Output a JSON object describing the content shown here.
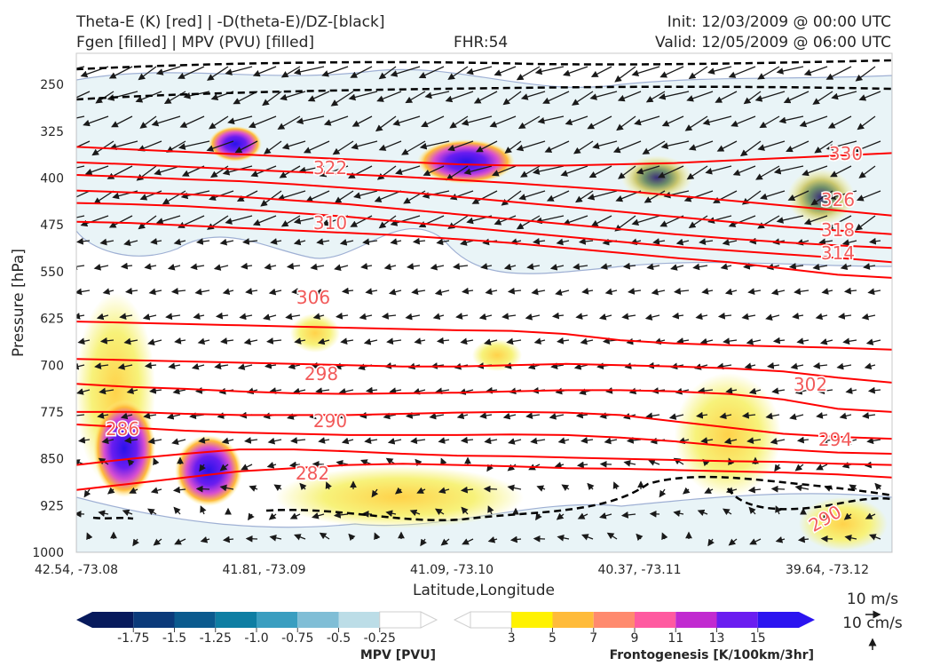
{
  "header": {
    "title_line1": "Theta-E (K) [red] | -D(theta-E)/DZ-[black]",
    "title_line2": "Fgen [filled] | MPV (PVU) [filled]",
    "fhr": "FHR:54",
    "init": "Init: 12/03/2009 @ 00:00 UTC",
    "valid": "Valid: 12/05/2009 @ 06:00 UTC"
  },
  "colors": {
    "theta_e": "#ff0000",
    "theta_e_label": "#f25a5a",
    "dthetae_dz": "#000000",
    "mpv_contour": "#9fb0d4",
    "mpv_fill": "#e9f4f7",
    "fgen_low": "#f3f58a",
    "vector": "#1a1a1a"
  },
  "chart_data": {
    "type": "contour",
    "xlabel": "Latitude,Longitude",
    "ylabel": "Pressure [hPa]",
    "x_ticks": [
      "42.54, -73.08",
      "41.81, -73.09",
      "41.09, -73.10",
      "40.37, -73.11",
      "39.64, -73.12"
    ],
    "y_ticks": [
      250,
      325,
      400,
      475,
      550,
      625,
      700,
      775,
      850,
      925,
      1000
    ],
    "ylim": [
      1000,
      200
    ],
    "theta_e_contours": [
      {
        "level": 282,
        "p": [
          900,
          890,
          880,
          870,
          865,
          860,
          858,
          860,
          862,
          865,
          866,
          868,
          870,
          872,
          875,
          880
        ]
      },
      {
        "level": 286,
        "p": [
          860,
          850,
          842,
          835,
          835,
          838,
          842,
          845,
          846,
          848,
          850,
          852,
          854,
          855,
          858,
          860
        ]
      },
      {
        "level": 290,
        "p": [
          795,
          800,
          805,
          808,
          810,
          812,
          812,
          812,
          811,
          812,
          816,
          822,
          830,
          835,
          840,
          842
        ]
      },
      {
        "level": 294,
        "p": [
          775,
          775,
          778,
          780,
          780,
          780,
          778,
          776,
          775,
          776,
          780,
          790,
          800,
          810,
          815,
          818
        ]
      },
      {
        "level": 298,
        "p": [
          730,
          735,
          738,
          742,
          745,
          746,
          745,
          744,
          742,
          740,
          740,
          742,
          746,
          755,
          770,
          775
        ]
      },
      {
        "level": 302,
        "p": [
          690,
          692,
          694,
          696,
          698,
          700,
          702,
          702,
          700,
          698,
          700,
          702,
          705,
          710,
          720,
          728
        ]
      },
      {
        "level": 306,
        "p": [
          630,
          632,
          634,
          636,
          638,
          640,
          642,
          644,
          645,
          650,
          660,
          665,
          668,
          670,
          672,
          675
        ]
      },
      {
        "level": 310,
        "p": [
          470,
          472,
          476,
          480,
          484,
          488,
          492,
          498,
          504,
          512,
          520,
          528,
          535,
          545,
          555,
          560
        ]
      },
      {
        "level": 314,
        "p": [
          440,
          442,
          445,
          450,
          456,
          462,
          470,
          478,
          486,
          494,
          502,
          510,
          516,
          522,
          528,
          535
        ]
      },
      {
        "level": 318,
        "p": [
          420,
          423,
          426,
          430,
          436,
          442,
          450,
          458,
          466,
          474,
          482,
          490,
          497,
          503,
          508,
          512
        ]
      },
      {
        "level": 322,
        "p": [
          395,
          398,
          402,
          405,
          410,
          416,
          422,
          430,
          438,
          446,
          454,
          462,
          470,
          478,
          484,
          490
        ]
      },
      {
        "level": 326,
        "p": [
          375,
          378,
          382,
          386,
          390,
          394,
          398,
          403,
          408,
          414,
          420,
          428,
          436,
          444,
          452,
          460
        ]
      },
      {
        "level": 330,
        "p": [
          350,
          354,
          358,
          362,
          366,
          370,
          374,
          378,
          380,
          380,
          378,
          376,
          372,
          368,
          364,
          360
        ]
      }
    ],
    "theta_e_labels": [
      "330",
      "326",
      "322",
      "318",
      "314",
      "310",
      "306",
      "302",
      "298",
      "294",
      "290",
      "290",
      "286",
      "282"
    ],
    "fgen_colorbar": {
      "label": "Frontogenesis [K/100km/3hr]",
      "ticks": [
        "3",
        "5",
        "7",
        "9",
        "11",
        "13",
        "15"
      ],
      "colors": [
        "#ffffff",
        "#fff200",
        "#ffbb3a",
        "#ff8a6e",
        "#ff5aa0",
        "#c12ad0",
        "#6a1df0",
        "#2b14f0"
      ]
    },
    "mpv_colorbar": {
      "label": "MPV [PVU]",
      "ticks": [
        "-1.75",
        "-1.5",
        "-1.25",
        "-1.0",
        "-0.75",
        "-0.5",
        "-0.25"
      ],
      "colors": [
        "#071a5c",
        "#0b3a7a",
        "#0b5a8e",
        "#0e7ea3",
        "#3a9ec0",
        "#80bed6",
        "#bcdde7",
        "#ffffff"
      ]
    },
    "vector_key": {
      "u_label": "10 m/s",
      "w_label": "10 cm/s"
    }
  }
}
